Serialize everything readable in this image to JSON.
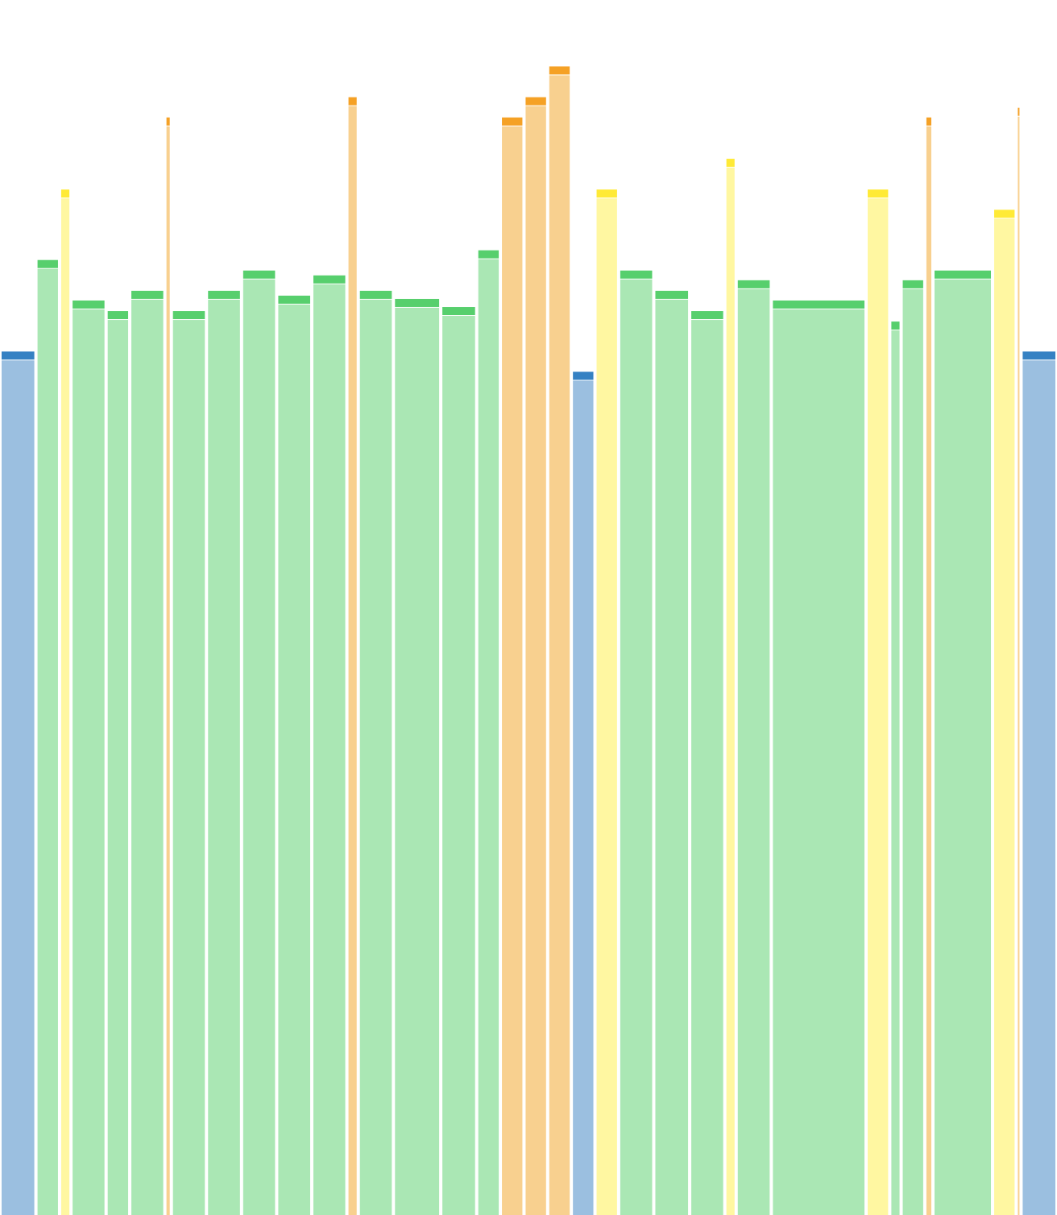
{
  "chart_data": {
    "type": "bar",
    "variable_width": true,
    "title": "",
    "xlabel": "",
    "ylabel": "",
    "ylim": [
      0,
      1500
    ],
    "grid": false,
    "legend": "none",
    "palette": {
      "blue": {
        "fill": "#9bbfe0",
        "cap": "#3581c3"
      },
      "green": {
        "fill": "#aae7b4",
        "cap": "#57cf6d"
      },
      "yellow": {
        "fill": "#fff7a1",
        "cap": "#ffea36"
      },
      "orange": {
        "fill": "#f8d08f",
        "cap": "#f5a125"
      }
    },
    "bars": [
      {
        "color": "blue",
        "weight": 40,
        "value": 1066
      },
      {
        "color": "green",
        "weight": 25,
        "value": 1179
      },
      {
        "color": "yellow",
        "weight": 10,
        "value": 1266
      },
      {
        "color": "green",
        "weight": 39,
        "value": 1129
      },
      {
        "color": "green",
        "weight": 25,
        "value": 1116
      },
      {
        "color": "green",
        "weight": 39,
        "value": 1141
      },
      {
        "color": "orange",
        "weight": 4,
        "value": 1355
      },
      {
        "color": "green",
        "weight": 39,
        "value": 1116
      },
      {
        "color": "green",
        "weight": 39,
        "value": 1141
      },
      {
        "color": "green",
        "weight": 39,
        "value": 1166
      },
      {
        "color": "green",
        "weight": 39,
        "value": 1135
      },
      {
        "color": "green",
        "weight": 39,
        "value": 1160
      },
      {
        "color": "orange",
        "weight": 10,
        "value": 1380
      },
      {
        "color": "green",
        "weight": 39,
        "value": 1141
      },
      {
        "color": "green",
        "weight": 54,
        "value": 1131
      },
      {
        "color": "green",
        "weight": 40,
        "value": 1121
      },
      {
        "color": "green",
        "weight": 25,
        "value": 1191
      },
      {
        "color": "orange",
        "weight": 25,
        "value": 1355
      },
      {
        "color": "orange",
        "weight": 25,
        "value": 1380
      },
      {
        "color": "orange",
        "weight": 25,
        "value": 1418
      },
      {
        "color": "blue",
        "weight": 25,
        "value": 1041
      },
      {
        "color": "yellow",
        "weight": 25,
        "value": 1266
      },
      {
        "color": "green",
        "weight": 39,
        "value": 1166
      },
      {
        "color": "green",
        "weight": 40,
        "value": 1141
      },
      {
        "color": "green",
        "weight": 39,
        "value": 1116
      },
      {
        "color": "yellow",
        "weight": 10,
        "value": 1304
      },
      {
        "color": "green",
        "weight": 39,
        "value": 1154
      },
      {
        "color": "green",
        "weight": 112,
        "value": 1129
      },
      {
        "color": "yellow",
        "weight": 25,
        "value": 1266
      },
      {
        "color": "green",
        "weight": 10,
        "value": 1103
      },
      {
        "color": "green",
        "weight": 25,
        "value": 1154
      },
      {
        "color": "orange",
        "weight": 6,
        "value": 1355
      },
      {
        "color": "green",
        "weight": 69,
        "value": 1166
      },
      {
        "color": "yellow",
        "weight": 25,
        "value": 1241
      },
      {
        "color": "orange",
        "weight": 2,
        "value": 1367
      },
      {
        "color": "blue",
        "weight": 40,
        "value": 1066
      }
    ]
  }
}
